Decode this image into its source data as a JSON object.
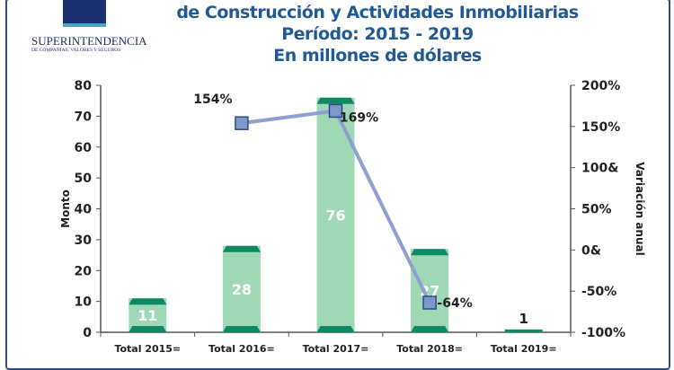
{
  "logo": {
    "name": "SUPERINTENDENCIA",
    "subtitle": "DE COMPAÑÍAS, VALORES Y SEGUROS"
  },
  "chart_data": {
    "type": "bar",
    "title_lines": [
      "de Construcción y Actividades Inmobiliarias",
      "Período: 2015 - 2019",
      "En millones de dólares"
    ],
    "categories": [
      "Total 2015=",
      "Total 2016=",
      "Total 2017=",
      "Total 2018=",
      "Total 2019="
    ],
    "values": [
      11,
      28,
      76,
      27,
      1
    ],
    "value_labels": [
      "11",
      "28",
      "76",
      "27",
      "1"
    ],
    "ylabel": "Monto",
    "ylim": [
      0,
      80
    ],
    "yticks": [
      0,
      10,
      20,
      30,
      40,
      50,
      60,
      70,
      80
    ],
    "y2label": "Variación anual",
    "y2lim": [
      -100,
      200
    ],
    "y2ticks": [
      -100,
      -50,
      0,
      50,
      100,
      150,
      200
    ],
    "y2tick_labels": [
      "-100%",
      "-50%",
      "0&",
      "50%",
      "100&",
      "150%",
      "200%"
    ],
    "line_series": {
      "name": "Variación anual",
      "points": [
        {
          "category": "Total 2016=",
          "value": 154,
          "label": "154%"
        },
        {
          "category": "Total 2017=",
          "value": 169,
          "label": "169%"
        },
        {
          "category": "Total 2018=",
          "value": -64,
          "label": "-64%"
        }
      ]
    },
    "colors": {
      "bar": "#9fd8b4",
      "bar_edge": "#0d8a63",
      "line": "#8e9fd0",
      "marker": "#7e98c8"
    }
  }
}
